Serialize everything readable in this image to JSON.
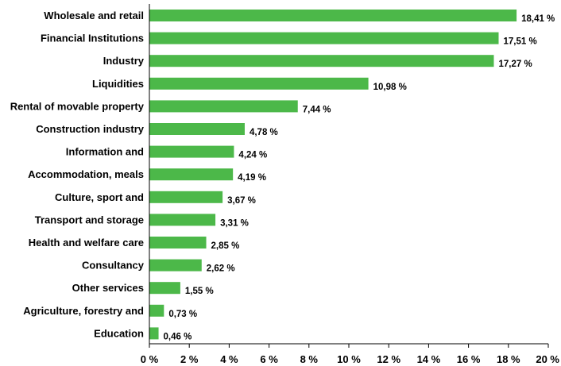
{
  "chart_data": {
    "type": "bar",
    "orientation": "horizontal",
    "categories": [
      "Wholesale and retail",
      "Financial Institutions",
      "Industry",
      "Liquidities",
      "Rental of movable property",
      "Construction industry",
      "Information and",
      "Accommodation, meals",
      "Culture, sport and",
      "Transport and storage",
      "Health and welfare care",
      "Consultancy",
      "Other services",
      "Agriculture, forestry and",
      "Education"
    ],
    "values": [
      18.41,
      17.51,
      17.27,
      10.98,
      7.44,
      4.78,
      4.24,
      4.19,
      3.67,
      3.31,
      2.85,
      2.62,
      1.55,
      0.73,
      0.46
    ],
    "data_labels": [
      "18,41 %",
      "17,51 %",
      "17,27 %",
      "10,98 %",
      "7,44 %",
      "4,78 %",
      "4,24 %",
      "4,19 %",
      "3,67 %",
      "3,31 %",
      "2,85 %",
      "2,62 %",
      "1,55 %",
      "0,73 %",
      "0,46 %"
    ],
    "x_ticks": [
      0,
      2,
      4,
      6,
      8,
      10,
      12,
      14,
      16,
      18,
      20
    ],
    "x_tick_labels": [
      "0 %",
      "2 %",
      "4 %",
      "6 %",
      "8 %",
      "10 %",
      "12 %",
      "14 %",
      "16 %",
      "18 %",
      "20 %"
    ],
    "xlim": [
      0,
      20
    ],
    "title": "",
    "xlabel": "",
    "ylabel": "",
    "grid": false,
    "legend": "none",
    "bar_color": "#4cb849"
  }
}
